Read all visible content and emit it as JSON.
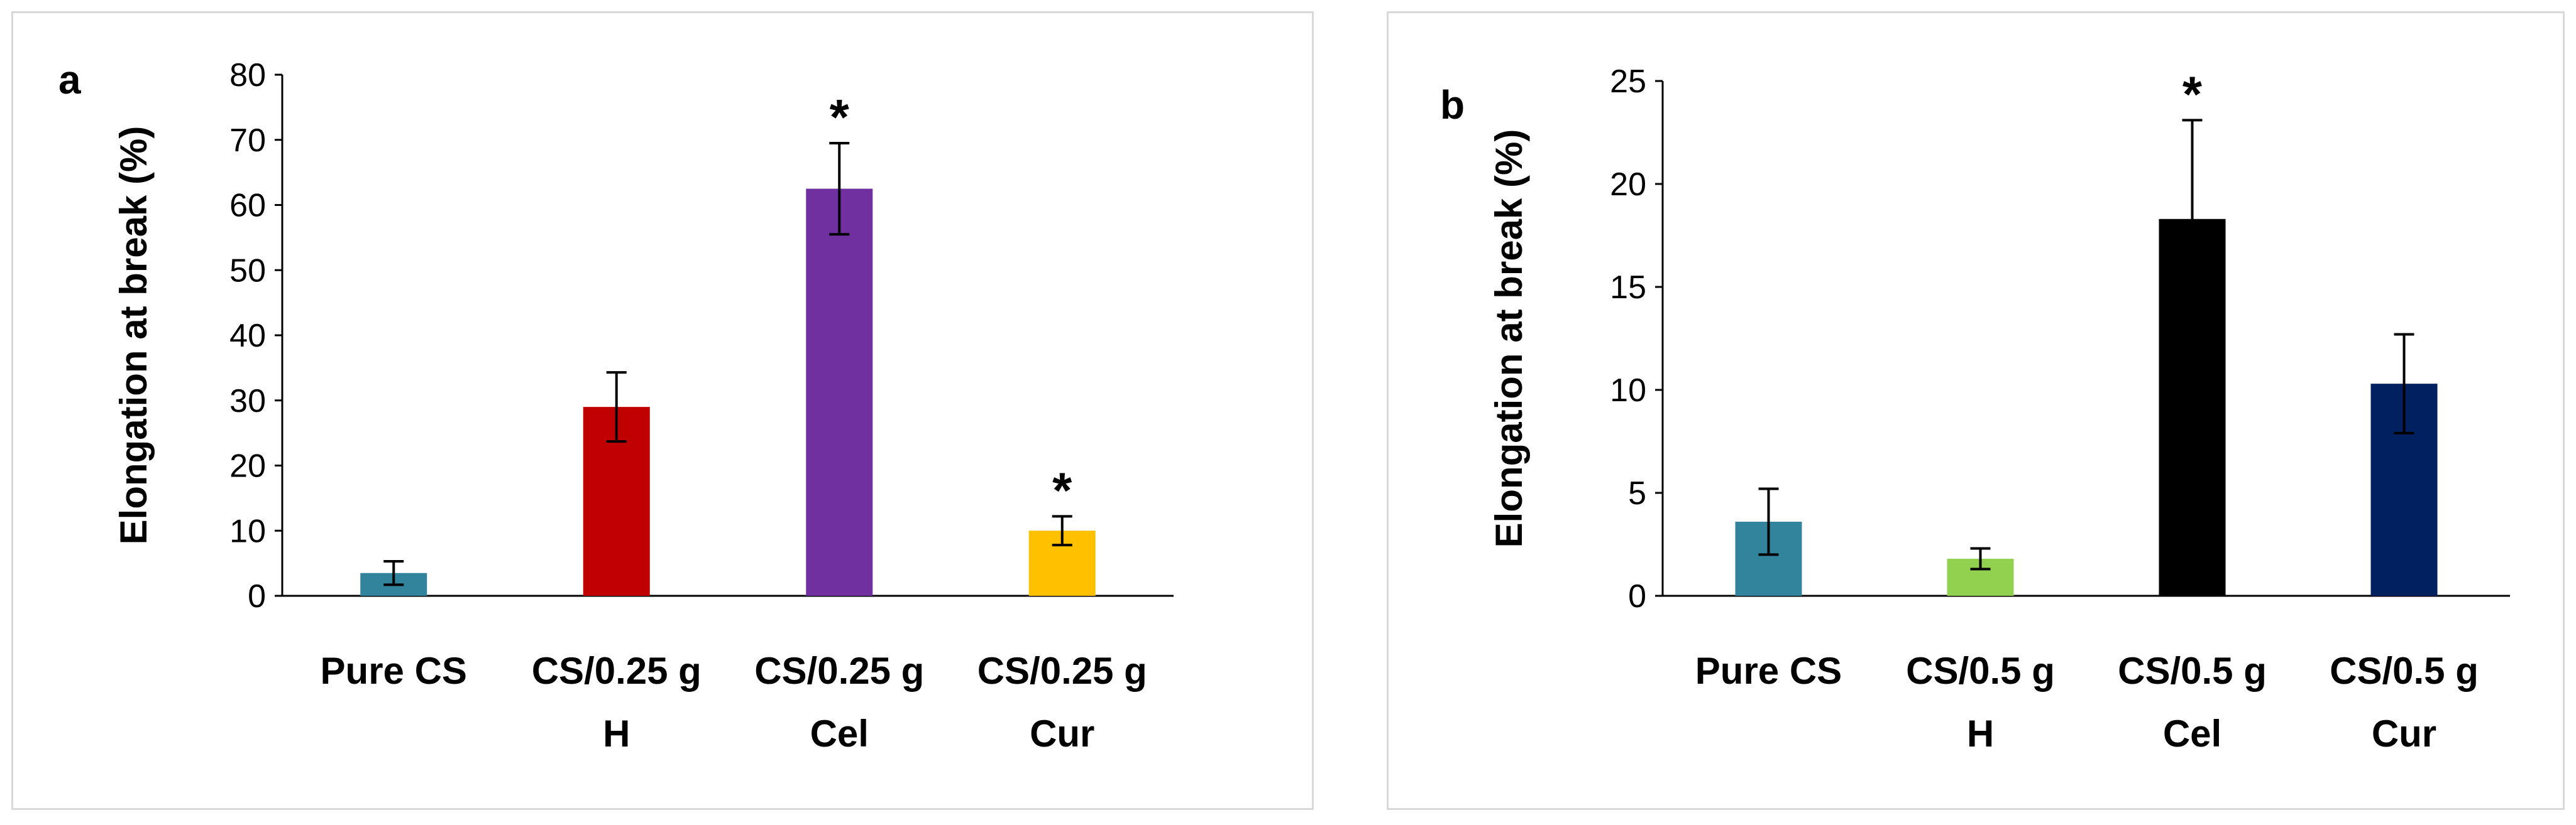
{
  "chart_data": [
    {
      "type": "bar",
      "panel_label": "a",
      "ylabel": "Elongation at break (%)",
      "xlabel": "",
      "ylim": [
        0,
        80
      ],
      "yticks": [
        0,
        10,
        20,
        30,
        40,
        50,
        60,
        70,
        80
      ],
      "grid": false,
      "categories": [
        [
          "Pure CS"
        ],
        [
          "CS/0.25 g",
          "H"
        ],
        [
          "CS/0.25 g",
          "Cel"
        ],
        [
          "CS/0.25 g",
          "Cur"
        ]
      ],
      "values": [
        3.5,
        29,
        62.5,
        10
      ],
      "errors": [
        1.8,
        5.3,
        7.0,
        2.2
      ],
      "significance": [
        "",
        "",
        "*",
        "*"
      ],
      "colors": [
        "#31849b",
        "#c00000",
        "#7030a0",
        "#ffc000"
      ]
    },
    {
      "type": "bar",
      "panel_label": "b",
      "ylabel": "Elongation at break (%)",
      "xlabel": "",
      "ylim": [
        0,
        25
      ],
      "yticks": [
        0,
        5,
        10,
        15,
        20,
        25
      ],
      "grid": false,
      "categories": [
        [
          "Pure CS"
        ],
        [
          "CS/0.5 g",
          "H"
        ],
        [
          "CS/0.5 g",
          "Cel"
        ],
        [
          "CS/0.5 g",
          "Cur"
        ]
      ],
      "values": [
        3.6,
        1.8,
        18.3,
        10.3
      ],
      "errors": [
        1.6,
        0.5,
        4.8,
        2.4
      ],
      "significance": [
        "",
        "",
        "*",
        ""
      ],
      "colors": [
        "#31849b",
        "#92d050",
        "#000000",
        "#002060"
      ]
    }
  ]
}
